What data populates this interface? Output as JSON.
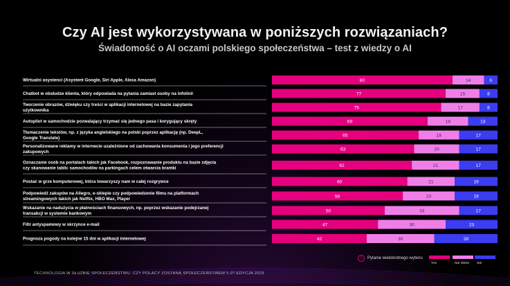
{
  "title": "Czy AI jest wykorzystywana w poniższych rozwiązaniach?",
  "subtitle": "Świadomość o AI oczami polskiego społeczeństwa – test z wiedzy o AI",
  "legend": {
    "note": "Pytanie wielokrotnego wyboru",
    "items": [
      {
        "label": "TAK",
        "color": "#e6007e"
      },
      {
        "label": "NIE WIEM",
        "color": "#f07ee8"
      },
      {
        "label": "NIE",
        "color": "#3c3cf0"
      }
    ]
  },
  "footer": "TECHNOLOGIA W SŁUŻBIE SPOŁECZEŃSTWU. CZY POLACY ZOSTANĄ SPOŁECZEŃSTWEM 5.0? EDYCJA 2023",
  "chart_data": {
    "type": "bar",
    "stacked": true,
    "orientation": "horizontal",
    "categories": [
      "Wirtualni asystenci (Asystent Google, Siri Apple, Alexa Amazon)",
      "Chatbot w obsłudze klienta, który odpowiada na pytania zamiast osoby na infolinii",
      "Tworzenie obrazów, dźwięku czy treści w aplikacji internetowej na bazie zapytania użytkownika",
      "Autopilot w samochodzie pozwalający trzymać się jednego pasa i korygujący skręty",
      "Tłumaczenie tekstów, np. z języka angielskiego na polski poprzez aplikację (np. DeepL, Google Translate)",
      "Personalizowane reklamy w internecie uzależnione od zachowania konsumenta i jego preferencji zakupowych",
      "Oznaczanie osób na portalach takich jak Facebook, rozpoznawanie produktu na bazie zdjęcia czy skanowanie tablic samochodów na parkingach celem otwarcia bramki",
      "Postać w grze komputerowej, która towarzyszy nam w całej rozgrywce",
      "Podpowiedź zakupów na Allegro, e-sklepie czy podpowiedzenie filmu na platformach streamingowych takich jak Netflix, HBO Max, Player",
      "Wskazanie na nadużycia w płatnościach finansowych, np. poprzez wskazanie podejrzanej transakcji w systemie bankowym",
      "Filtr antyspamowy w skrzynce e-mail",
      "Prognoza pogody na kolejne 15 dni w aplikacji internetowej"
    ],
    "series": [
      {
        "name": "TAK",
        "color": "#e6007e",
        "values": [
          80,
          77,
          75,
          69,
          65,
          63,
          62,
          60,
          58,
          50,
          47,
          42
        ]
      },
      {
        "name": "NIE WIEM",
        "color": "#f07ee8",
        "values": [
          14,
          15,
          17,
          18,
          18,
          20,
          21,
          21,
          23,
          33,
          30,
          30
        ]
      },
      {
        "name": "NIE",
        "color": "#3c3cf0",
        "values": [
          6,
          8,
          8,
          13,
          17,
          17,
          17,
          19,
          19,
          17,
          23,
          28
        ]
      }
    ],
    "xlim": [
      0,
      100
    ]
  }
}
